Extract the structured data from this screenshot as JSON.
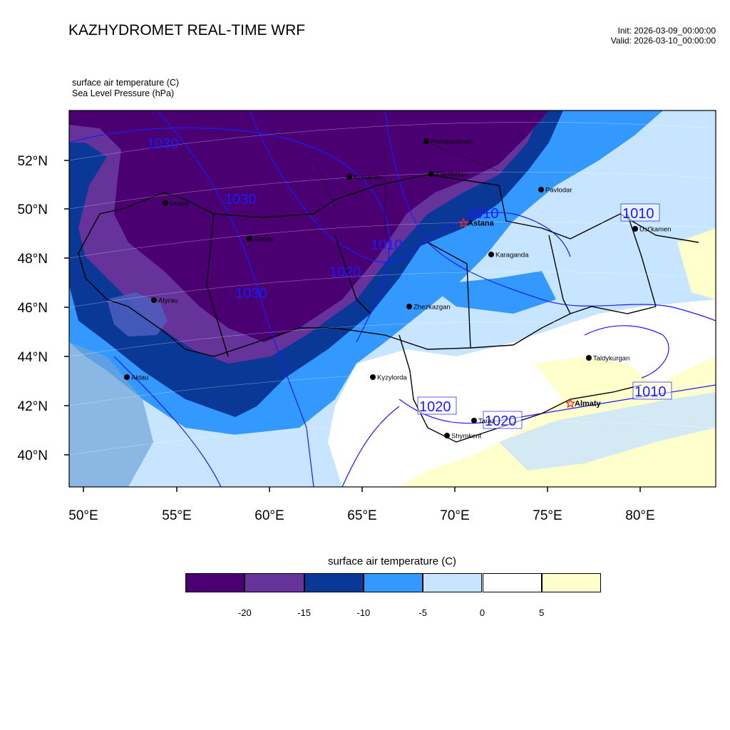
{
  "header": {
    "title": "KAZHYDROMET REAL-TIME WRF",
    "init": "Init: 2026-03-09_00:00:00",
    "valid": "Valid: 2026-03-10_00:00:00",
    "var1": "surface air temperature   (C)",
    "var2": "Sea Level Pressure   (hPa)"
  },
  "map": {
    "lon_labels": [
      "50°E",
      "55°E",
      "60°E",
      "65°E",
      "70°E",
      "75°E",
      "80°E"
    ],
    "lat_labels": [
      "52°N",
      "50°N",
      "48°N",
      "46°N",
      "44°N",
      "42°N",
      "40°N"
    ],
    "cities": [
      {
        "name": "Petropavlovsk"
      },
      {
        "name": "Kostanay"
      },
      {
        "name": "Kokshetau"
      },
      {
        "name": "Uralsk"
      },
      {
        "name": "Pavlodar"
      },
      {
        "name": "Aktobe"
      },
      {
        "name": "Astana",
        "capital": true
      },
      {
        "name": "Ust'kamen"
      },
      {
        "name": "Karaganda"
      },
      {
        "name": "Atyrau"
      },
      {
        "name": "Zhezkazgan"
      },
      {
        "name": "Taldykurgan"
      },
      {
        "name": "Aktau"
      },
      {
        "name": "Kyzylorda"
      },
      {
        "name": "Almaty",
        "capital": true
      },
      {
        "name": "Taraz"
      },
      {
        "name": "Shymkent"
      }
    ],
    "isobar_labels": [
      "1030",
      "1030",
      "1030",
      "1020",
      "1010",
      "1010",
      "1010",
      "1010",
      "1020",
      "1020"
    ]
  },
  "legend": {
    "title": "surface air temperature (C)",
    "colors": [
      "#4b0072",
      "#653399",
      "#0a3897",
      "#3399ff",
      "#c8e5ff",
      "#ffffff",
      "#ffffcc"
    ],
    "labels": [
      "-20",
      "-15",
      "-10",
      "-5",
      "0",
      "5"
    ]
  }
}
